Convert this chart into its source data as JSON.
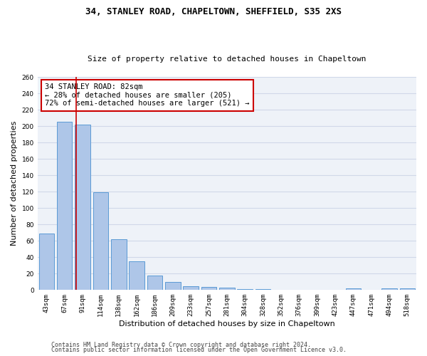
{
  "title1": "34, STANLEY ROAD, CHAPELTOWN, SHEFFIELD, S35 2XS",
  "title2": "Size of property relative to detached houses in Chapeltown",
  "xlabel": "Distribution of detached houses by size in Chapeltown",
  "ylabel": "Number of detached properties",
  "categories": [
    "43sqm",
    "67sqm",
    "91sqm",
    "114sqm",
    "138sqm",
    "162sqm",
    "186sqm",
    "209sqm",
    "233sqm",
    "257sqm",
    "281sqm",
    "304sqm",
    "328sqm",
    "352sqm",
    "376sqm",
    "399sqm",
    "423sqm",
    "447sqm",
    "471sqm",
    "494sqm",
    "518sqm"
  ],
  "values": [
    69,
    205,
    202,
    119,
    62,
    35,
    18,
    10,
    5,
    4,
    3,
    1,
    1,
    0,
    0,
    0,
    0,
    2,
    0,
    2,
    2
  ],
  "bar_color": "#aec6e8",
  "bar_edge_color": "#5b9bd5",
  "grid_color": "#d0d8e8",
  "background_color": "#eef2f8",
  "vline_color": "#cc0000",
  "vline_x": 1.65,
  "annotation_text": "34 STANLEY ROAD: 82sqm\n← 28% of detached houses are smaller (205)\n72% of semi-detached houses are larger (521) →",
  "annotation_box_color": "#ffffff",
  "annotation_box_edge_color": "#cc0000",
  "ylim": [
    0,
    260
  ],
  "yticks": [
    0,
    20,
    40,
    60,
    80,
    100,
    120,
    140,
    160,
    180,
    200,
    220,
    240,
    260
  ],
  "footer1": "Contains HM Land Registry data © Crown copyright and database right 2024.",
  "footer2": "Contains public sector information licensed under the Open Government Licence v3.0.",
  "title1_fontsize": 9,
  "title2_fontsize": 8,
  "xlabel_fontsize": 8,
  "ylabel_fontsize": 8,
  "tick_fontsize": 6.5,
  "annotation_fontsize": 7.5,
  "footer_fontsize": 6
}
